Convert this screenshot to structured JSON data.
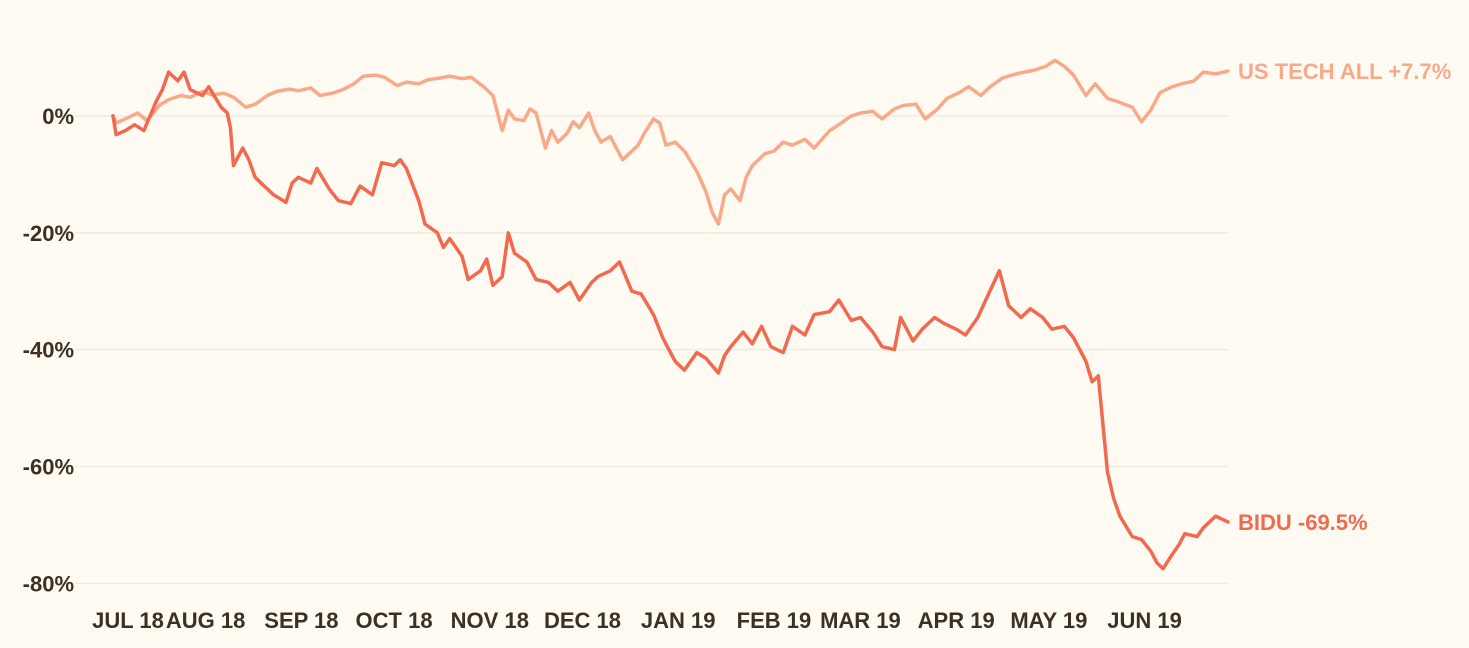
{
  "chart_data": {
    "type": "line",
    "title": "",
    "xlabel": "",
    "ylabel": "",
    "ylim": [
      -82,
      13
    ],
    "xlim": [
      "2018-07-02",
      "2019-06-28"
    ],
    "grid": "horizontal",
    "legend": "end-of-line labels",
    "y_ticks": [
      {
        "value": 0,
        "label": "0%"
      },
      {
        "value": -20,
        "label": "-20%"
      },
      {
        "value": -40,
        "label": "-40%"
      },
      {
        "value": -60,
        "label": "-60%"
      },
      {
        "value": -80,
        "label": "-80%"
      }
    ],
    "x_ticks": [
      {
        "date": "2018-07-01",
        "label": "JUL 18"
      },
      {
        "date": "2018-08-01",
        "label": "AUG 18"
      },
      {
        "date": "2018-09-01",
        "label": "SEP 18"
      },
      {
        "date": "2018-10-01",
        "label": "OCT 18"
      },
      {
        "date": "2018-11-01",
        "label": "NOV 18"
      },
      {
        "date": "2018-12-01",
        "label": "DEC 18"
      },
      {
        "date": "2019-01-01",
        "label": "JAN 19"
      },
      {
        "date": "2019-02-01",
        "label": "FEB 19"
      },
      {
        "date": "2019-03-01",
        "label": "MAR 19"
      },
      {
        "date": "2019-04-01",
        "label": "APR 19"
      },
      {
        "date": "2019-05-01",
        "label": "MAY 19"
      },
      {
        "date": "2019-06-01",
        "label": "JUN 19"
      }
    ],
    "series": [
      {
        "label": "US TECH ALL +7.7%",
        "color": "#f7a98a",
        "points": [
          [
            "2018-07-02",
            0
          ],
          [
            "2018-07-03",
            -1.2
          ],
          [
            "2018-07-06",
            -0.5
          ],
          [
            "2018-07-10",
            0.5
          ],
          [
            "2018-07-13",
            -0.8
          ],
          [
            "2018-07-17",
            1.8
          ],
          [
            "2018-07-20",
            2.8
          ],
          [
            "2018-07-24",
            3.5
          ],
          [
            "2018-07-27",
            3.2
          ],
          [
            "2018-07-31",
            4.2
          ],
          [
            "2018-08-03",
            3.6
          ],
          [
            "2018-08-07",
            3.9
          ],
          [
            "2018-08-10",
            3.2
          ],
          [
            "2018-08-14",
            1.5
          ],
          [
            "2018-08-17",
            2.0
          ],
          [
            "2018-08-21",
            3.5
          ],
          [
            "2018-08-24",
            4.2
          ],
          [
            "2018-08-28",
            4.6
          ],
          [
            "2018-08-31",
            4.3
          ],
          [
            "2018-09-04",
            4.8
          ],
          [
            "2018-09-07",
            3.5
          ],
          [
            "2018-09-11",
            3.9
          ],
          [
            "2018-09-14",
            4.4
          ],
          [
            "2018-09-18",
            5.5
          ],
          [
            "2018-09-21",
            6.8
          ],
          [
            "2018-09-25",
            7.0
          ],
          [
            "2018-09-28",
            6.6
          ],
          [
            "2018-10-02",
            5.2
          ],
          [
            "2018-10-05",
            5.8
          ],
          [
            "2018-10-09",
            5.5
          ],
          [
            "2018-10-12",
            6.2
          ],
          [
            "2018-10-16",
            6.5
          ],
          [
            "2018-10-19",
            6.8
          ],
          [
            "2018-10-23",
            6.4
          ],
          [
            "2018-10-26",
            6.6
          ],
          [
            "2018-10-30",
            5.0
          ],
          [
            "2018-11-02",
            3.5
          ],
          [
            "2018-11-05",
            -2.5
          ],
          [
            "2018-11-07",
            1.0
          ],
          [
            "2018-11-09",
            -0.5
          ],
          [
            "2018-11-12",
            -0.8
          ],
          [
            "2018-11-14",
            1.2
          ],
          [
            "2018-11-16",
            0.5
          ],
          [
            "2018-11-19",
            -5.5
          ],
          [
            "2018-11-21",
            -2.5
          ],
          [
            "2018-11-23",
            -4.5
          ],
          [
            "2018-11-26",
            -3.0
          ],
          [
            "2018-11-28",
            -1.0
          ],
          [
            "2018-11-30",
            -2.0
          ],
          [
            "2018-12-03",
            0.5
          ],
          [
            "2018-12-05",
            -2.5
          ],
          [
            "2018-12-07",
            -4.5
          ],
          [
            "2018-12-10",
            -3.5
          ],
          [
            "2018-12-12",
            -5.5
          ],
          [
            "2018-12-14",
            -7.5
          ],
          [
            "2018-12-17",
            -6.0
          ],
          [
            "2018-12-19",
            -5.0
          ],
          [
            "2018-12-21",
            -3.0
          ],
          [
            "2018-12-24",
            -0.5
          ],
          [
            "2018-12-26",
            -1.2
          ],
          [
            "2018-12-28",
            -5.0
          ],
          [
            "2018-12-31",
            -4.5
          ],
          [
            "2019-01-03",
            -6.0
          ],
          [
            "2019-01-07",
            -9.5
          ],
          [
            "2019-01-10",
            -13.0
          ],
          [
            "2019-01-12",
            -16.5
          ],
          [
            "2019-01-14",
            -18.5
          ],
          [
            "2019-01-16",
            -13.5
          ],
          [
            "2019-01-18",
            -12.5
          ],
          [
            "2019-01-21",
            -14.5
          ],
          [
            "2019-01-23",
            -10.5
          ],
          [
            "2019-01-25",
            -8.5
          ],
          [
            "2019-01-29",
            -6.5
          ],
          [
            "2019-02-01",
            -6.0
          ],
          [
            "2019-02-04",
            -4.5
          ],
          [
            "2019-02-07",
            -5.0
          ],
          [
            "2019-02-11",
            -4.0
          ],
          [
            "2019-02-14",
            -5.5
          ],
          [
            "2019-02-19",
            -2.5
          ],
          [
            "2019-02-22",
            -1.5
          ],
          [
            "2019-02-26",
            0.0
          ],
          [
            "2019-03-01",
            0.5
          ],
          [
            "2019-03-05",
            0.8
          ],
          [
            "2019-03-08",
            -0.5
          ],
          [
            "2019-03-12",
            1.2
          ],
          [
            "2019-03-15",
            1.8
          ],
          [
            "2019-03-19",
            2.0
          ],
          [
            "2019-03-22",
            -0.5
          ],
          [
            "2019-03-26",
            1.2
          ],
          [
            "2019-03-29",
            3.0
          ],
          [
            "2019-04-02",
            4.0
          ],
          [
            "2019-04-05",
            5.0
          ],
          [
            "2019-04-09",
            3.5
          ],
          [
            "2019-04-12",
            5.0
          ],
          [
            "2019-04-16",
            6.5
          ],
          [
            "2019-04-19",
            7.0
          ],
          [
            "2019-04-23",
            7.5
          ],
          [
            "2019-04-26",
            7.8
          ],
          [
            "2019-04-30",
            8.5
          ],
          [
            "2019-05-03",
            9.5
          ],
          [
            "2019-05-06",
            8.5
          ],
          [
            "2019-05-09",
            7.0
          ],
          [
            "2019-05-13",
            3.5
          ],
          [
            "2019-05-16",
            5.5
          ],
          [
            "2019-05-20",
            3.0
          ],
          [
            "2019-05-23",
            2.5
          ],
          [
            "2019-05-28",
            1.5
          ],
          [
            "2019-05-31",
            -1.0
          ],
          [
            "2019-06-03",
            1.0
          ],
          [
            "2019-06-06",
            4.0
          ],
          [
            "2019-06-10",
            5.0
          ],
          [
            "2019-06-13",
            5.5
          ],
          [
            "2019-06-17",
            6.0
          ],
          [
            "2019-06-20",
            7.5
          ],
          [
            "2019-06-24",
            7.2
          ],
          [
            "2019-06-28",
            7.7
          ]
        ]
      },
      {
        "label": "BIDU -69.5%",
        "color": "#f16a4f",
        "points": [
          [
            "2018-07-02",
            0
          ],
          [
            "2018-07-03",
            -3.2
          ],
          [
            "2018-07-06",
            -2.5
          ],
          [
            "2018-07-09",
            -1.5
          ],
          [
            "2018-07-12",
            -2.5
          ],
          [
            "2018-07-16",
            2.5
          ],
          [
            "2018-07-18",
            4.5
          ],
          [
            "2018-07-20",
            7.5
          ],
          [
            "2018-07-23",
            6.0
          ],
          [
            "2018-07-25",
            7.5
          ],
          [
            "2018-07-27",
            4.5
          ],
          [
            "2018-07-31",
            3.5
          ],
          [
            "2018-08-02",
            5.0
          ],
          [
            "2018-08-06",
            1.5
          ],
          [
            "2018-08-08",
            0.5
          ],
          [
            "2018-08-09",
            -2.0
          ],
          [
            "2018-08-10",
            -8.5
          ],
          [
            "2018-08-13",
            -5.5
          ],
          [
            "2018-08-15",
            -7.5
          ],
          [
            "2018-08-17",
            -10.5
          ],
          [
            "2018-08-20",
            -12.0
          ],
          [
            "2018-08-23",
            -13.5
          ],
          [
            "2018-08-27",
            -14.8
          ],
          [
            "2018-08-29",
            -11.5
          ],
          [
            "2018-08-31",
            -10.5
          ],
          [
            "2018-09-04",
            -11.5
          ],
          [
            "2018-09-06",
            -9.0
          ],
          [
            "2018-09-10",
            -12.5
          ],
          [
            "2018-09-13",
            -14.5
          ],
          [
            "2018-09-17",
            -15.0
          ],
          [
            "2018-09-20",
            -12.0
          ],
          [
            "2018-09-24",
            -13.5
          ],
          [
            "2018-09-27",
            -8.0
          ],
          [
            "2018-10-01",
            -8.5
          ],
          [
            "2018-10-03",
            -7.5
          ],
          [
            "2018-10-05",
            -9.0
          ],
          [
            "2018-10-09",
            -14.5
          ],
          [
            "2018-10-11",
            -18.5
          ],
          [
            "2018-10-15",
            -20.0
          ],
          [
            "2018-10-17",
            -22.5
          ],
          [
            "2018-10-19",
            -21.0
          ],
          [
            "2018-10-23",
            -24.0
          ],
          [
            "2018-10-25",
            -28.0
          ],
          [
            "2018-10-29",
            -26.5
          ],
          [
            "2018-10-31",
            -24.5
          ],
          [
            "2018-11-02",
            -29.0
          ],
          [
            "2018-11-05",
            -27.5
          ],
          [
            "2018-11-07",
            -20.0
          ],
          [
            "2018-11-09",
            -23.5
          ],
          [
            "2018-11-13",
            -25.0
          ],
          [
            "2018-11-16",
            -28.0
          ],
          [
            "2018-11-20",
            -28.5
          ],
          [
            "2018-11-23",
            -30.0
          ],
          [
            "2018-11-27",
            -28.5
          ],
          [
            "2018-11-30",
            -31.5
          ],
          [
            "2018-12-04",
            -28.5
          ],
          [
            "2018-12-06",
            -27.5
          ],
          [
            "2018-12-10",
            -26.5
          ],
          [
            "2018-12-13",
            -25.0
          ],
          [
            "2018-12-17",
            -30.0
          ],
          [
            "2018-12-20",
            -30.5
          ],
          [
            "2018-12-24",
            -34.0
          ],
          [
            "2018-12-27",
            -38.0
          ],
          [
            "2018-12-31",
            -42.0
          ],
          [
            "2019-01-03",
            -43.5
          ],
          [
            "2019-01-07",
            -40.5
          ],
          [
            "2019-01-10",
            -41.5
          ],
          [
            "2019-01-14",
            -44.0
          ],
          [
            "2019-01-16",
            -41.0
          ],
          [
            "2019-01-18",
            -39.5
          ],
          [
            "2019-01-22",
            -37.0
          ],
          [
            "2019-01-25",
            -39.0
          ],
          [
            "2019-01-28",
            -36.0
          ],
          [
            "2019-01-31",
            -39.5
          ],
          [
            "2019-02-04",
            -40.5
          ],
          [
            "2019-02-07",
            -36.0
          ],
          [
            "2019-02-11",
            -37.5
          ],
          [
            "2019-02-14",
            -34.0
          ],
          [
            "2019-02-19",
            -33.5
          ],
          [
            "2019-02-22",
            -31.5
          ],
          [
            "2019-02-26",
            -35.0
          ],
          [
            "2019-03-01",
            -34.5
          ],
          [
            "2019-03-05",
            -37.0
          ],
          [
            "2019-03-08",
            -39.5
          ],
          [
            "2019-03-12",
            -40.0
          ],
          [
            "2019-03-14",
            -34.5
          ],
          [
            "2019-03-18",
            -38.5
          ],
          [
            "2019-03-21",
            -36.5
          ],
          [
            "2019-03-25",
            -34.5
          ],
          [
            "2019-03-28",
            -35.5
          ],
          [
            "2019-04-01",
            -36.5
          ],
          [
            "2019-04-04",
            -37.5
          ],
          [
            "2019-04-08",
            -34.5
          ],
          [
            "2019-04-11",
            -31.0
          ],
          [
            "2019-04-15",
            -26.5
          ],
          [
            "2019-04-18",
            -32.5
          ],
          [
            "2019-04-22",
            -34.5
          ],
          [
            "2019-04-25",
            -33.0
          ],
          [
            "2019-04-29",
            -34.5
          ],
          [
            "2019-05-02",
            -36.5
          ],
          [
            "2019-05-06",
            -36.0
          ],
          [
            "2019-05-09",
            -38.0
          ],
          [
            "2019-05-13",
            -42.0
          ],
          [
            "2019-05-15",
            -45.5
          ],
          [
            "2019-05-17",
            -44.5
          ],
          [
            "2019-05-20",
            -61.0
          ],
          [
            "2019-05-22",
            -65.5
          ],
          [
            "2019-05-24",
            -68.5
          ],
          [
            "2019-05-28",
            -72.0
          ],
          [
            "2019-05-31",
            -72.5
          ],
          [
            "2019-06-03",
            -74.5
          ],
          [
            "2019-06-05",
            -76.5
          ],
          [
            "2019-06-07",
            -77.5
          ],
          [
            "2019-06-10",
            -75.0
          ],
          [
            "2019-06-12",
            -73.5
          ],
          [
            "2019-06-14",
            -71.5
          ],
          [
            "2019-06-18",
            -72.0
          ],
          [
            "2019-06-20",
            -70.5
          ],
          [
            "2019-06-24",
            -68.5
          ],
          [
            "2019-06-26",
            -69.0
          ],
          [
            "2019-06-28",
            -69.5
          ]
        ]
      }
    ]
  }
}
